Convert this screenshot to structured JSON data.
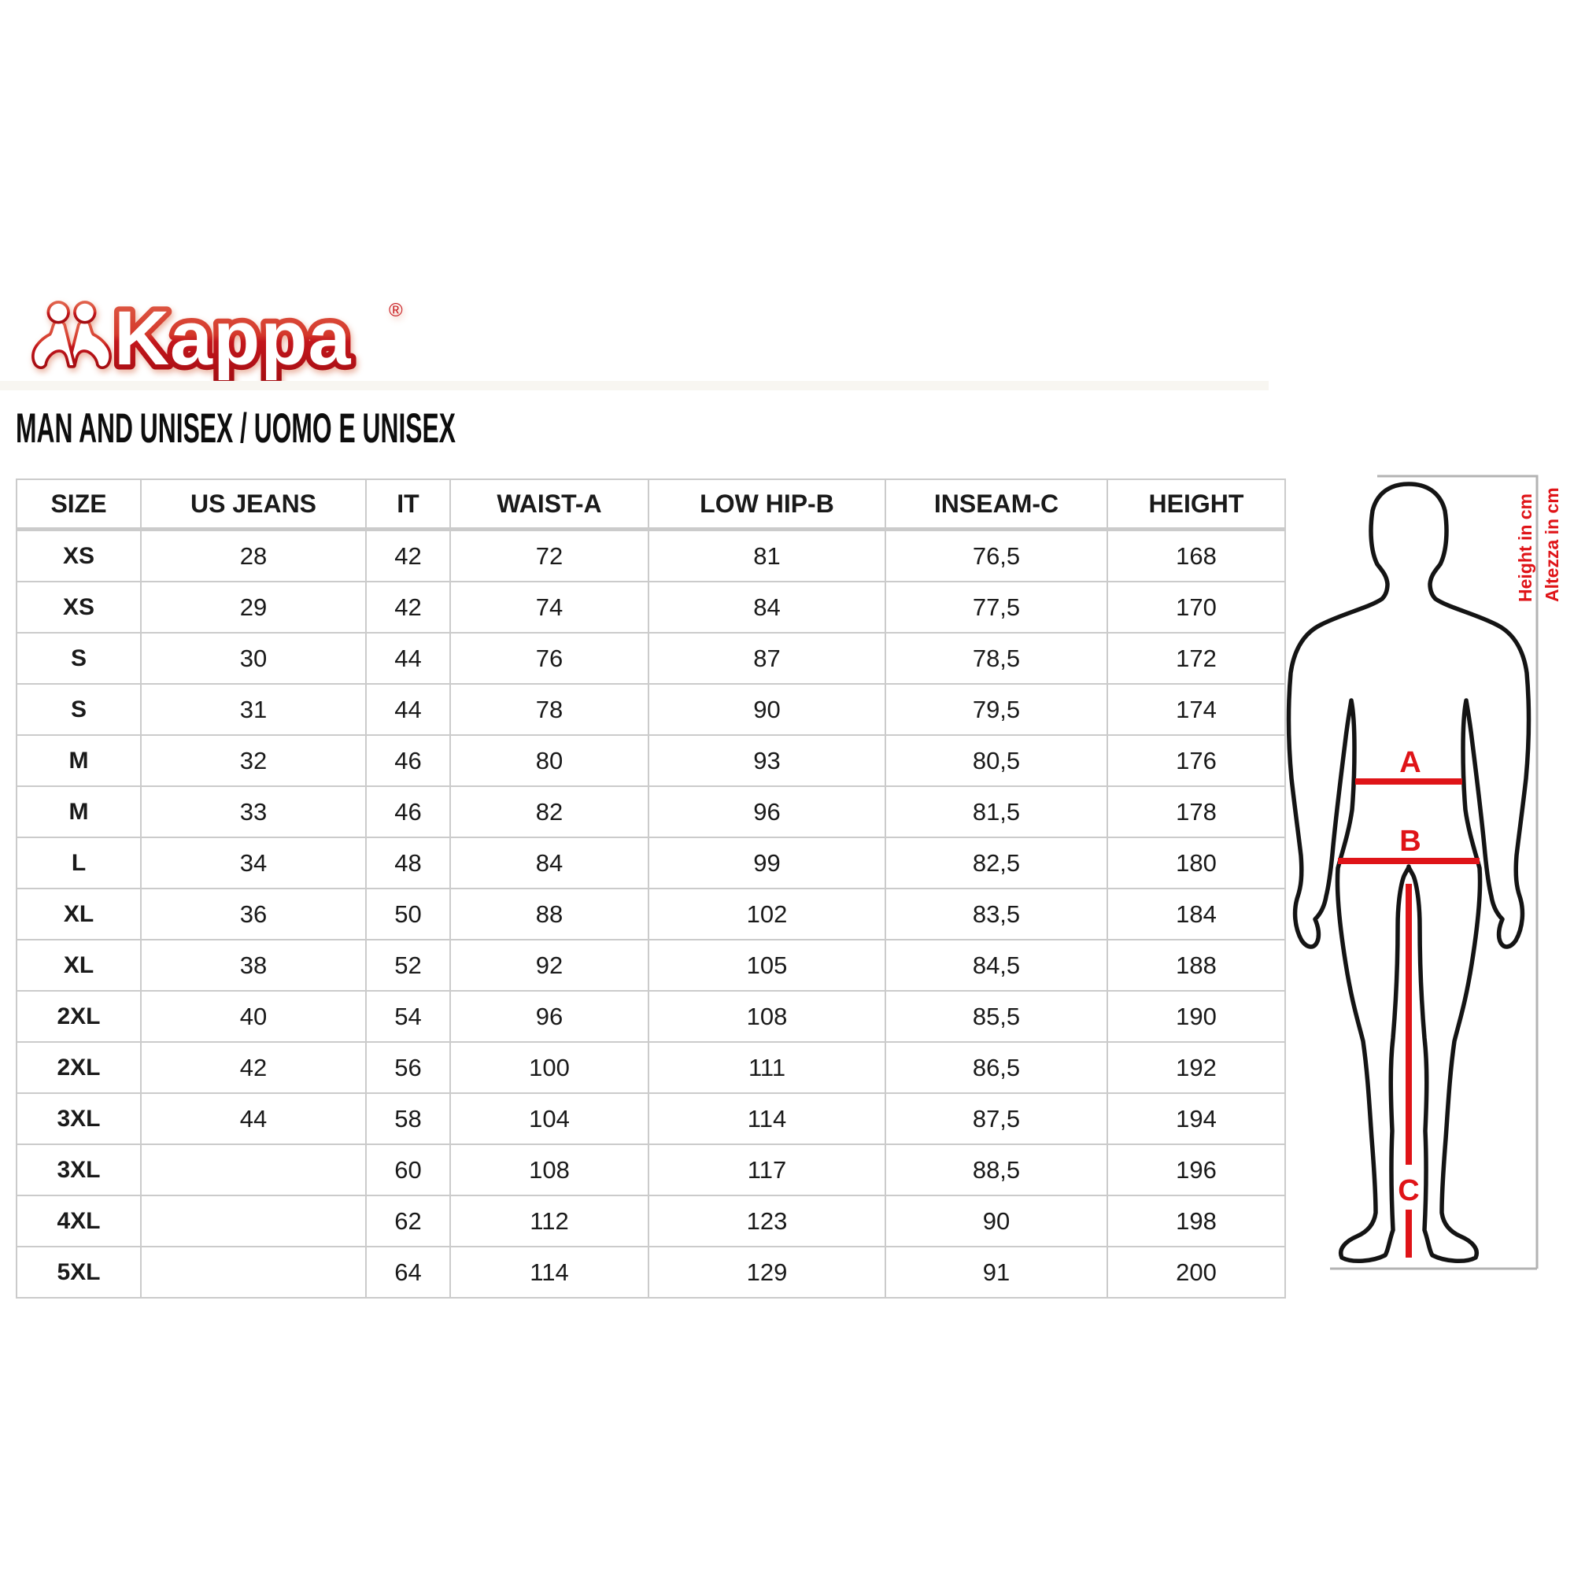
{
  "brand": {
    "logo_text": "Kappa",
    "registered_mark": "®",
    "omini_icon": "kappa-back-to-back-seated-figures"
  },
  "page": {
    "title": "MAN AND UNISEX / UOMO E UNISEX"
  },
  "table": {
    "headers": [
      "SIZE",
      "US JEANS",
      "IT",
      "WAIST-A",
      "LOW HIP-B",
      "INSEAM-C",
      "HEIGHT"
    ],
    "rows": [
      [
        "XS",
        "28",
        "42",
        "72",
        "81",
        "76,5",
        "168"
      ],
      [
        "XS",
        "29",
        "42",
        "74",
        "84",
        "77,5",
        "170"
      ],
      [
        "S",
        "30",
        "44",
        "76",
        "87",
        "78,5",
        "172"
      ],
      [
        "S",
        "31",
        "44",
        "78",
        "90",
        "79,5",
        "174"
      ],
      [
        "M",
        "32",
        "46",
        "80",
        "93",
        "80,5",
        "176"
      ],
      [
        "M",
        "33",
        "46",
        "82",
        "96",
        "81,5",
        "178"
      ],
      [
        "L",
        "34",
        "48",
        "84",
        "99",
        "82,5",
        "180"
      ],
      [
        "XL",
        "36",
        "50",
        "88",
        "102",
        "83,5",
        "184"
      ],
      [
        "XL",
        "38",
        "52",
        "92",
        "105",
        "84,5",
        "188"
      ],
      [
        "2XL",
        "40",
        "54",
        "96",
        "108",
        "85,5",
        "190"
      ],
      [
        "2XL",
        "42",
        "56",
        "100",
        "111",
        "86,5",
        "192"
      ],
      [
        "3XL",
        "44",
        "58",
        "104",
        "114",
        "87,5",
        "194"
      ],
      [
        "3XL",
        "",
        "60",
        "108",
        "117",
        "88,5",
        "196"
      ],
      [
        "4XL",
        "",
        "62",
        "112",
        "123",
        "90",
        "198"
      ],
      [
        "5XL",
        "",
        "64",
        "114",
        "129",
        "91",
        "200"
      ]
    ]
  },
  "figure": {
    "waist_label": "A",
    "low_hip_label": "B",
    "inseam_label": "C",
    "height_note_en": "Height in cm",
    "height_note_it": "Altezza in cm"
  },
  "colors": {
    "accent_red": "#df1418",
    "logo_orange": "#e0604a",
    "logo_dark_red": "#a50d12",
    "table_border": "#cbcbcb",
    "measure_gray": "#b3b3b3",
    "text": "#141414"
  }
}
